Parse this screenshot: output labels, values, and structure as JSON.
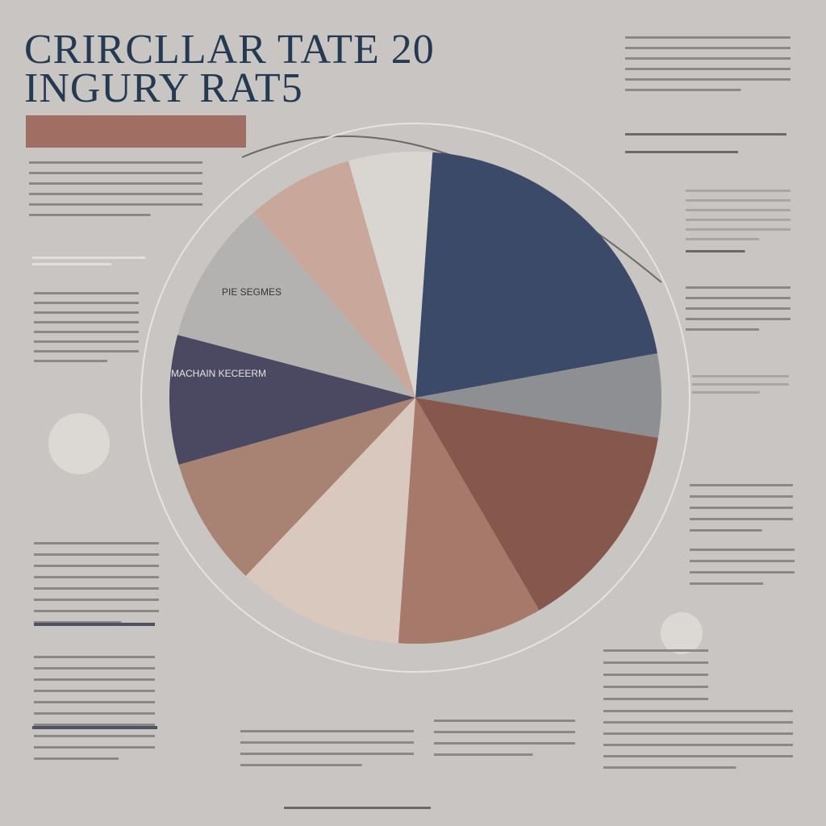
{
  "chart_data": {
    "type": "pie",
    "title": "CRIRCLLAR TATE 20",
    "subtitle": "INGURY RAT5",
    "annotations": [
      "PIE SEGMES",
      "MACHAIN KECEERM"
    ],
    "values": [
      21,
      5.5,
      14,
      9.5,
      11,
      8.5,
      8.5,
      9.5,
      7,
      5.5
    ],
    "colors": [
      "#3c4a69",
      "#8e8f92",
      "#86574d",
      "#a6796b",
      "#d8c8bd",
      "#a88273",
      "#4b4961",
      "#b4b2b1",
      "#c9a89b",
      "#d9d6d2"
    ]
  }
}
